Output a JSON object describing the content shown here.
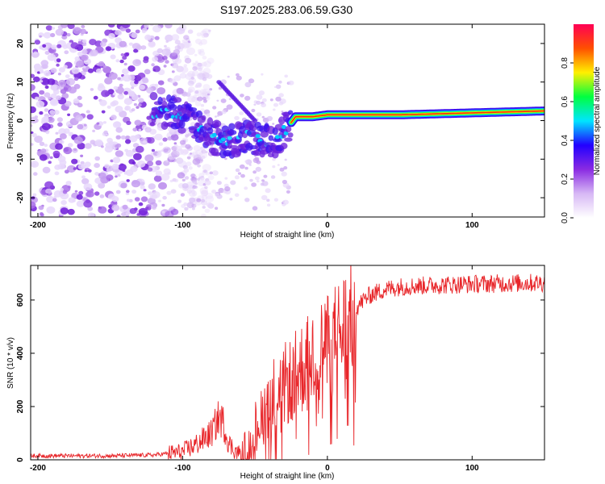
{
  "title": "S197.2025.283.06.59.G30",
  "chart_data": [
    {
      "type": "heatmap",
      "name": "spectrogram",
      "xlabel": "Height of straight line (km)",
      "ylabel": "Frequency (Hz)",
      "xlim": [
        -205,
        150
      ],
      "ylim": [
        -25,
        25
      ],
      "xticks": [
        -200,
        -100,
        0,
        100
      ],
      "yticks": [
        -20,
        -10,
        0,
        10,
        20
      ],
      "colorbar": {
        "label": "Normalized spectral amplitude",
        "range": [
          0,
          1
        ],
        "ticks": [
          "0.0",
          "0.2",
          "0.4",
          "0.6",
          "0.8"
        ],
        "colors": [
          "#ffffff",
          "#d7b8f5",
          "#8a2be2",
          "#2200ff",
          "#00e5ff",
          "#00ff40",
          "#fff000",
          "#ff5000",
          "#ff0055"
        ]
      },
      "noise_region_x": [
        -205,
        -100
      ],
      "ridge": {
        "x": [
          -120,
          -105,
          -95,
          -85,
          -75,
          -65,
          -55,
          -45,
          -38,
          -30,
          -22,
          -15,
          -10,
          0,
          20,
          50,
          100,
          150
        ],
        "y": [
          3,
          2,
          0,
          -3,
          -5,
          -5,
          -4,
          -5,
          -6,
          -3,
          1,
          1,
          1,
          1.5,
          1.5,
          1.5,
          2,
          2.5
        ]
      },
      "branch": {
        "x": [
          -75,
          -70,
          -65,
          -60,
          -55,
          -50
        ],
        "y": [
          10,
          8,
          6,
          4,
          2,
          0
        ]
      }
    },
    {
      "type": "line",
      "name": "snr",
      "xlabel": "Height of straight line (km)",
      "ylabel": "SNR (10 * v/v)",
      "xlim": [
        -205,
        150
      ],
      "ylim": [
        0,
        730
      ],
      "xticks": [
        -200,
        -100,
        0,
        100
      ],
      "yticks": [
        0,
        200,
        400,
        600
      ],
      "color": "#e8262a",
      "envelope": {
        "x": [
          -205,
          -150,
          -120,
          -100,
          -90,
          -80,
          -75,
          -72,
          -68,
          -62,
          -55,
          -50,
          -45,
          -40,
          -35,
          -30,
          -25,
          -20,
          -15,
          -10,
          -5,
          0,
          5,
          10,
          15,
          20,
          25,
          30,
          40,
          50,
          70,
          100,
          150
        ],
        "y": [
          15,
          15,
          18,
          30,
          60,
          100,
          160,
          140,
          60,
          25,
          40,
          120,
          180,
          230,
          260,
          280,
          300,
          330,
          360,
          390,
          410,
          430,
          450,
          480,
          520,
          570,
          600,
          620,
          640,
          650,
          655,
          660,
          665
        ]
      }
    }
  ]
}
